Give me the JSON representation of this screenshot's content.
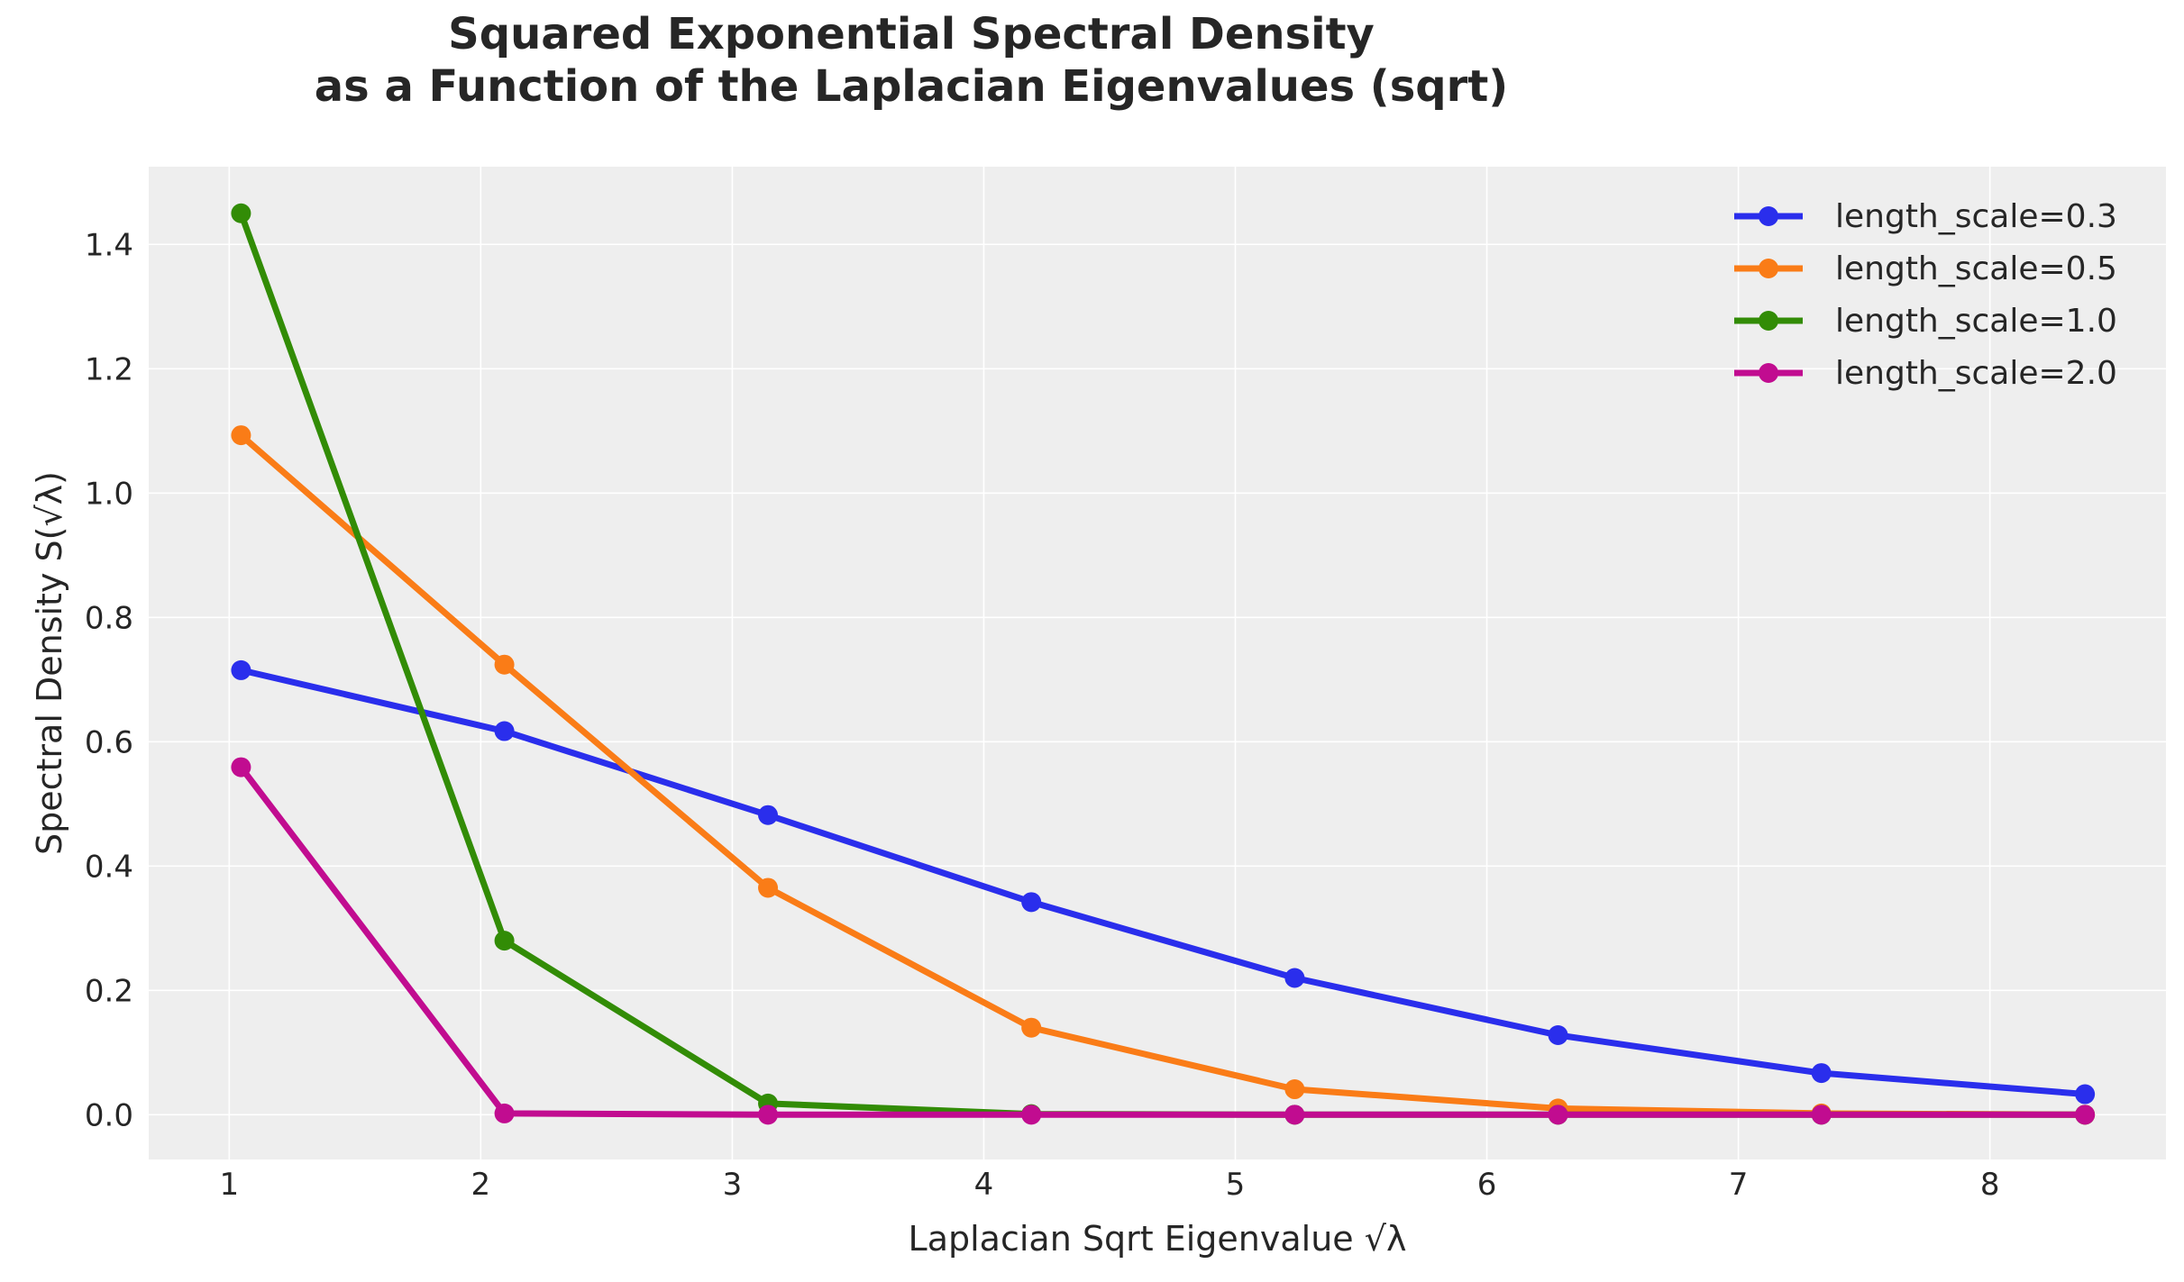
{
  "chart_data": {
    "type": "line",
    "title_line1": "Squared Exponential Spectral Density",
    "title_line2": "as a Function of the Laplacian Eigenvalues (sqrt)",
    "xlabel": "Laplacian Sqrt Eigenvalue √λ",
    "ylabel": "Spectral Density S(√λ)",
    "xlim": [
      0.68,
      8.7
    ],
    "ylim": [
      -0.072,
      1.525
    ],
    "xticks": [
      1,
      2,
      3,
      4,
      5,
      6,
      7,
      8
    ],
    "yticks": [
      0.0,
      0.2,
      0.4,
      0.6,
      0.8,
      1.0,
      1.2,
      1.4
    ],
    "xtick_labels": [
      "1",
      "2",
      "3",
      "4",
      "5",
      "6",
      "7",
      "8"
    ],
    "ytick_labels": [
      "0.0",
      "0.2",
      "0.4",
      "0.6",
      "0.8",
      "1.0",
      "1.2",
      "1.4"
    ],
    "grid": true,
    "legend_position": "top-right",
    "x": [
      1.047,
      2.094,
      3.142,
      4.189,
      5.236,
      6.283,
      7.33,
      8.378
    ],
    "series": [
      {
        "name": "length_scale=0.3",
        "color": "#2a2eec",
        "values": [
          0.715,
          0.617,
          0.482,
          0.342,
          0.22,
          0.128,
          0.067,
          0.033
        ]
      },
      {
        "name": "length_scale=0.5",
        "color": "#fa7c17",
        "values": [
          1.093,
          0.724,
          0.365,
          0.14,
          0.041,
          0.01,
          0.002,
          0.0
        ]
      },
      {
        "name": "length_scale=1.0",
        "color": "#328c06",
        "values": [
          1.45,
          0.28,
          0.018,
          0.001,
          0.0,
          0.0,
          0.0,
          0.0
        ]
      },
      {
        "name": "length_scale=2.0",
        "color": "#c10c90",
        "values": [
          0.559,
          0.002,
          0.0,
          0.0,
          0.0,
          0.0,
          0.0,
          0.0
        ]
      }
    ]
  }
}
